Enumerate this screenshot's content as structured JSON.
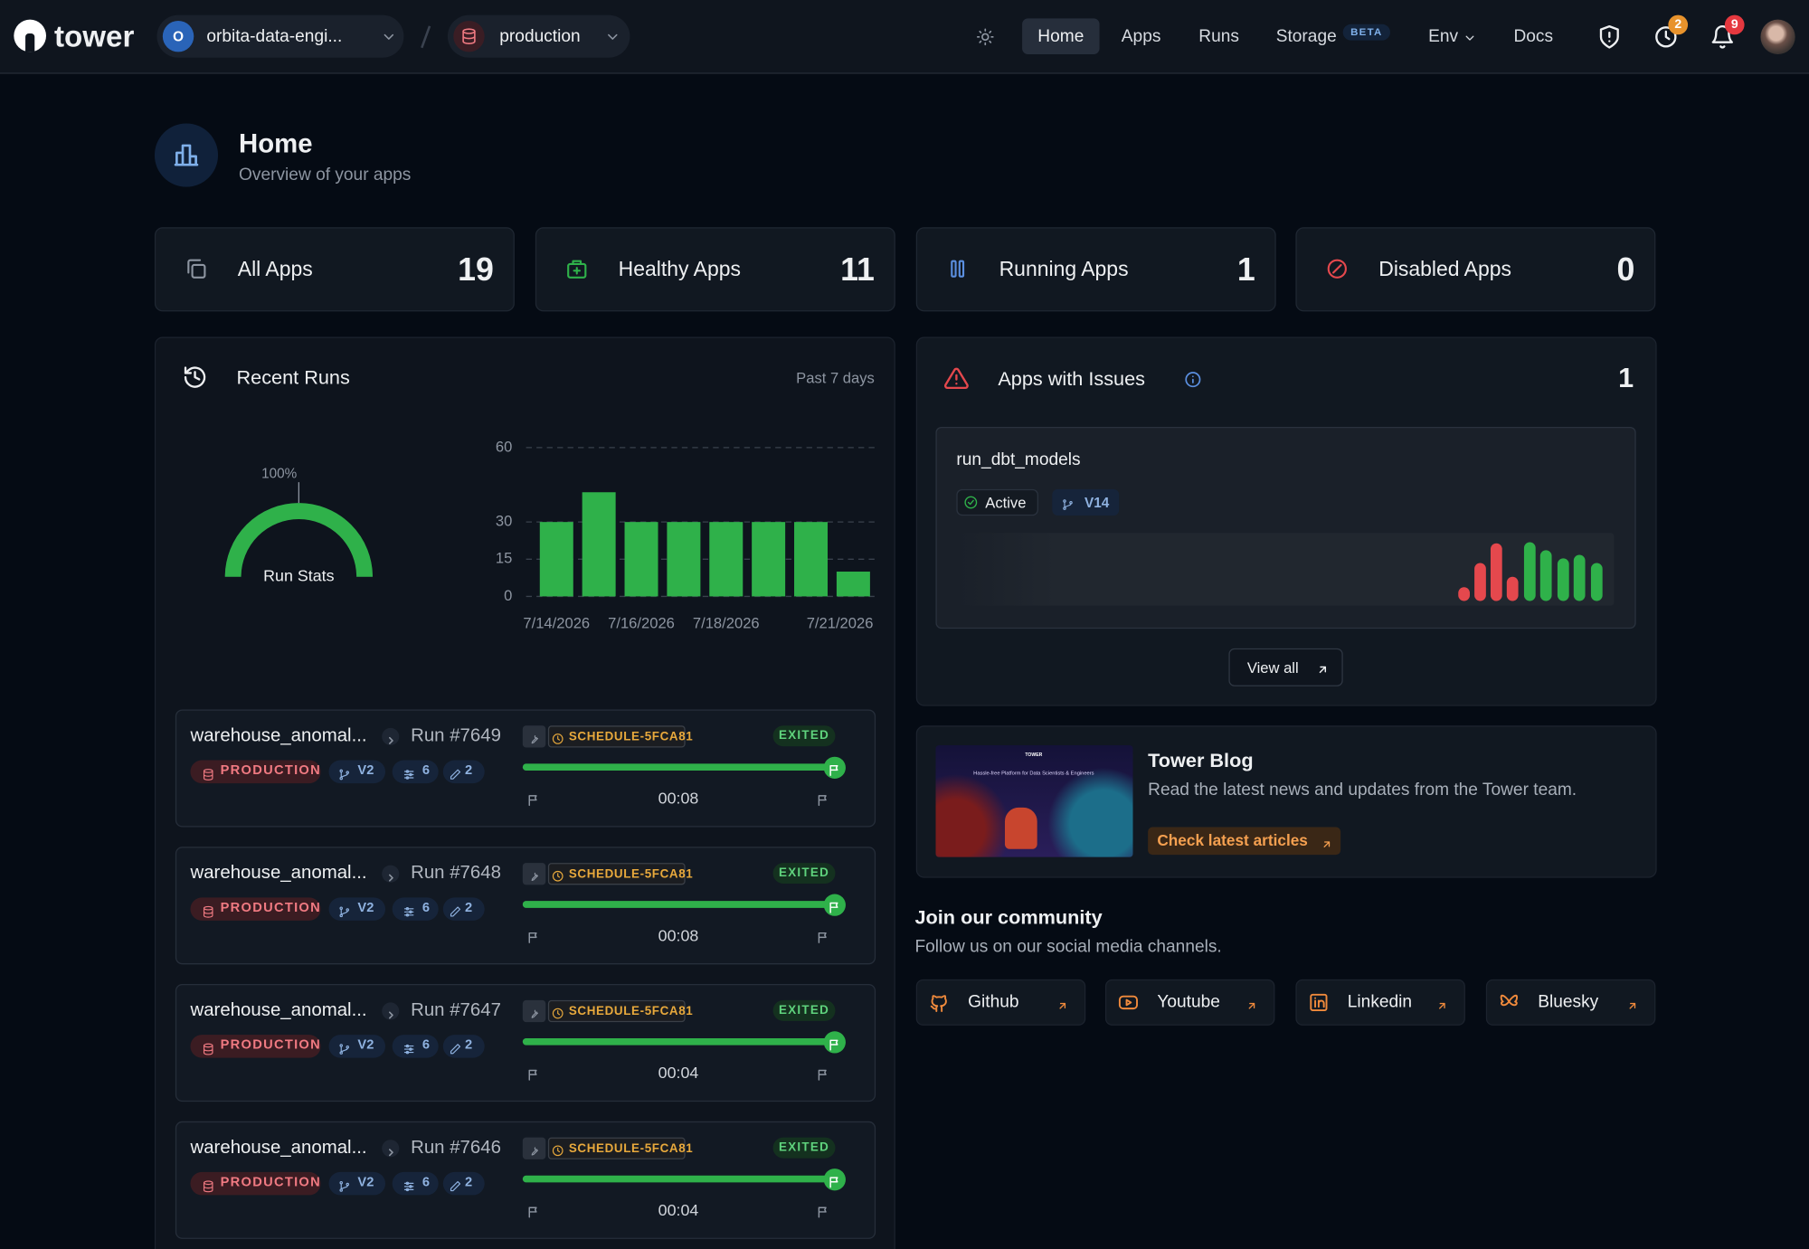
{
  "nav": {
    "logo": "tower",
    "org_initial": "O",
    "org": "orbita-data-engi...",
    "environment": "production",
    "links": [
      "Home",
      "Apps",
      "Runs",
      "Storage",
      "Env",
      "Docs"
    ],
    "storage_badge": "BETA",
    "schedule_alerts": 2,
    "notifications": 9
  },
  "header": {
    "title": "Home",
    "subtitle": "Overview of your apps"
  },
  "stats": [
    {
      "label": "All Apps",
      "value": 19
    },
    {
      "label": "Healthy Apps",
      "value": 11
    },
    {
      "label": "Running Apps",
      "value": 1
    },
    {
      "label": "Disabled Apps",
      "value": 0
    }
  ],
  "recent_runs": {
    "title": "Recent Runs",
    "period": "Past 7 days",
    "runs": [
      {
        "app": "warehouse_anomal...",
        "run": "Run #7649",
        "schedule": "SCHEDULE-5FCA81",
        "status": "EXITED",
        "environment": "PRODUCTION",
        "version": "V2",
        "parameters": 6,
        "secrets": 2,
        "duration": "00:08"
      },
      {
        "app": "warehouse_anomal...",
        "run": "Run #7648",
        "schedule": "SCHEDULE-5FCA81",
        "status": "EXITED",
        "environment": "PRODUCTION",
        "version": "V2",
        "parameters": 6,
        "secrets": 2,
        "duration": "00:08"
      },
      {
        "app": "warehouse_anomal...",
        "run": "Run #7647",
        "schedule": "SCHEDULE-5FCA81",
        "status": "EXITED",
        "environment": "PRODUCTION",
        "version": "V2",
        "parameters": 6,
        "secrets": 2,
        "duration": "00:04"
      },
      {
        "app": "warehouse_anomal...",
        "run": "Run #7646",
        "schedule": "SCHEDULE-5FCA81",
        "status": "EXITED",
        "environment": "PRODUCTION",
        "version": "V2",
        "parameters": 6,
        "secrets": 2,
        "duration": "00:04"
      }
    ]
  },
  "chart_data": [
    {
      "type": "gauge",
      "title": "Run Stats",
      "values": [
        100
      ],
      "value_labels": [
        "100%"
      ],
      "ylim": [
        0,
        100
      ],
      "color": "#2fb14a"
    },
    {
      "type": "bar",
      "categories": [
        "7/14/2026",
        null,
        "7/16/2026",
        null,
        "7/18/2026",
        null,
        null,
        "7/21/2026"
      ],
      "values": [
        30,
        42,
        30,
        30,
        30,
        30,
        30,
        10
      ],
      "color": "#2fb14a",
      "ylim": [
        0,
        60
      ],
      "yticks": [
        0,
        15,
        30,
        60
      ],
      "grid": true
    }
  ],
  "issues": {
    "title": "Apps with Issues",
    "count": 1,
    "app": "run_dbt_models",
    "state": "Active",
    "version": "V14",
    "button": "View all"
  },
  "blog": {
    "image_brand": "TOWER",
    "image_caption": "Hassle-free Platform for Data Scientists & Engineers",
    "title": "Tower Blog",
    "description": "Read the latest news and updates from the Tower team.",
    "button": "Check latest articles"
  },
  "community": {
    "title": "Join our community",
    "subtitle": "Follow us on our social media channels.",
    "links": [
      "Github",
      "Youtube",
      "Linkedin",
      "Bluesky"
    ]
  }
}
